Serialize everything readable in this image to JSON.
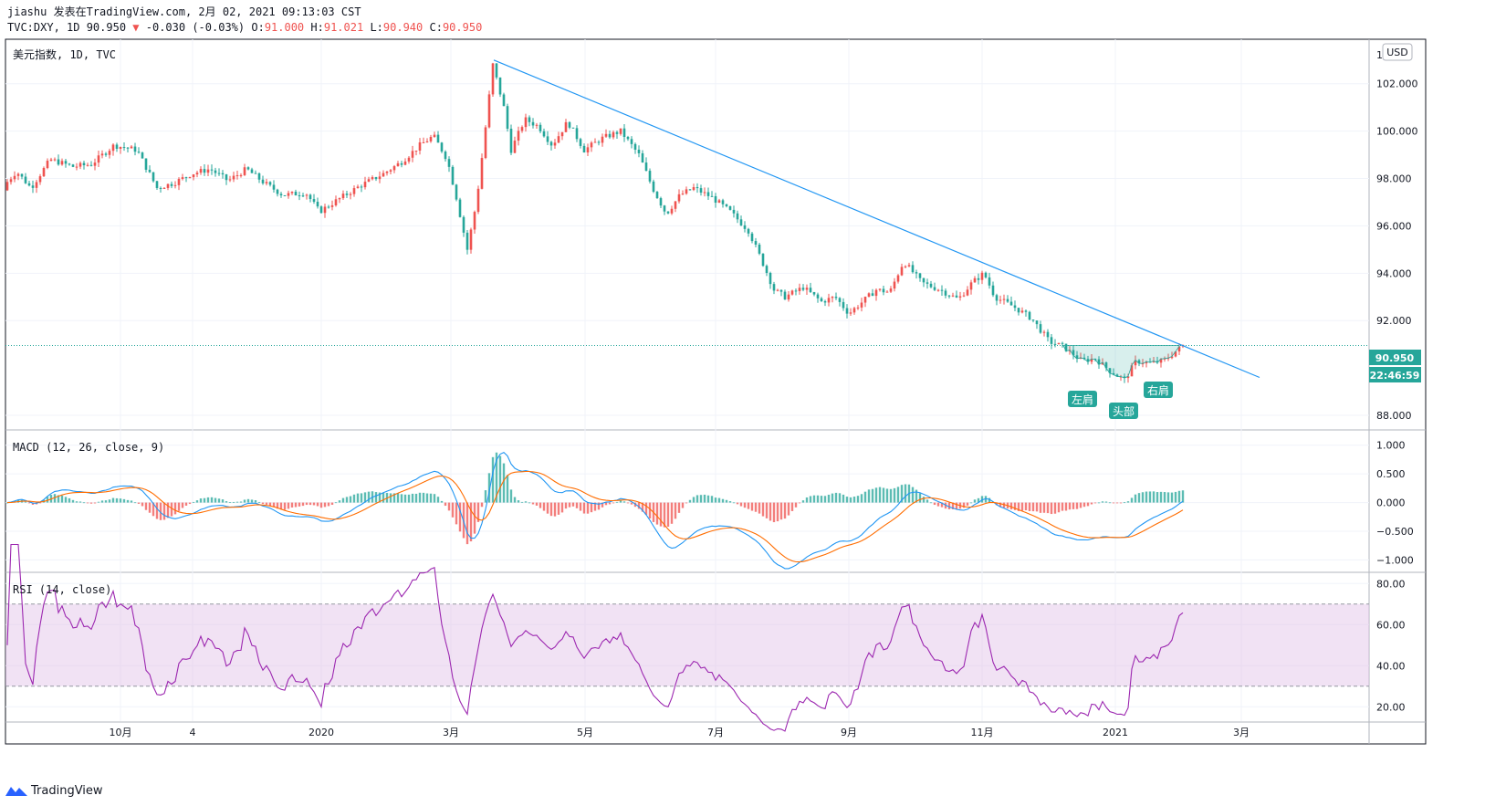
{
  "header": {
    "line1": "jiashu 发表在TradingView.com, 2月 02, 2021 09:13:03 CST",
    "symbol": "TVC:DXY, 1D 90.950",
    "change_arrow": "▼",
    "change": "-0.030 (-0.03%)",
    "o_label": "O:",
    "o_value": "91.000",
    "h_label": "H:",
    "h_value": "91.021",
    "l_label": "L:",
    "l_value": "90.940",
    "c_label": "C:",
    "c_value": "90.950"
  },
  "main_pane": {
    "title": "美元指数, 1D, TVC",
    "currency": "USD",
    "y_ticks": [
      "102.000",
      "100.000",
      "98.000",
      "96.000",
      "94.000",
      "92.000",
      "88.000"
    ],
    "top_tick": "1",
    "last_price": "90.950",
    "countdown": "22:46:59",
    "annotations": [
      "左肩",
      "头部",
      "右肩"
    ]
  },
  "macd_pane": {
    "title": "MACD (12, 26, close, 9)",
    "y_ticks": [
      "1.000",
      "0.500",
      "0.000",
      "−0.500",
      "−1.000"
    ]
  },
  "rsi_pane": {
    "title": "RSI (14, close)",
    "y_ticks": [
      "80.00",
      "60.00",
      "40.00",
      "20.00"
    ]
  },
  "time_axis": [
    "10月",
    "4",
    "2020",
    "3月",
    "5月",
    "7月",
    "9月",
    "11月",
    "2021",
    "3月"
  ],
  "footer": {
    "brand": "TradingView"
  },
  "colors": {
    "up": "#ef5350",
    "down": "#26a69a",
    "trendline": "#2196f3",
    "macd": "#2196f3",
    "signal": "#ff6d00",
    "rsi": "#9c27b0",
    "rsi_band": "#e1bee7",
    "badge": "#26a69a"
  },
  "chart_data": {
    "type": "candlestick",
    "symbol": "TVC:DXY",
    "interval": "1D",
    "x_labels": [
      "10月",
      "4",
      "2020",
      "3月",
      "5月",
      "7月",
      "9月",
      "11月",
      "2021",
      "3月"
    ],
    "price_path_keypoints": [
      [
        0,
        97.5
      ],
      [
        18,
        98.3
      ],
      [
        34,
        97.6
      ],
      [
        55,
        98.8
      ],
      [
        80,
        98.5
      ],
      [
        100,
        98.6
      ],
      [
        125,
        99.4
      ],
      [
        150,
        99.2
      ],
      [
        172,
        97.6
      ],
      [
        190,
        97.8
      ],
      [
        210,
        98.2
      ],
      [
        230,
        98.4
      ],
      [
        250,
        97.9
      ],
      [
        270,
        98.4
      ],
      [
        290,
        97.8
      ],
      [
        310,
        97.3
      ],
      [
        335,
        97.4
      ],
      [
        350,
        96.6
      ],
      [
        370,
        97.1
      ],
      [
        395,
        97.7
      ],
      [
        420,
        98.2
      ],
      [
        440,
        98.7
      ],
      [
        460,
        99.4
      ],
      [
        475,
        99.8
      ],
      [
        490,
        98.8
      ],
      [
        500,
        97.2
      ],
      [
        512,
        95.0
      ],
      [
        522,
        97.0
      ],
      [
        530,
        99.5
      ],
      [
        540,
        102.8
      ],
      [
        552,
        101.0
      ],
      [
        560,
        99.2
      ],
      [
        575,
        100.5
      ],
      [
        590,
        100.2
      ],
      [
        605,
        99.4
      ],
      [
        622,
        100.4
      ],
      [
        640,
        99.2
      ],
      [
        660,
        99.7
      ],
      [
        680,
        100.0
      ],
      [
        700,
        99.0
      ],
      [
        715,
        97.6
      ],
      [
        730,
        96.5
      ],
      [
        745,
        97.3
      ],
      [
        760,
        97.6
      ],
      [
        780,
        97.2
      ],
      [
        800,
        96.6
      ],
      [
        820,
        95.8
      ],
      [
        835,
        94.5
      ],
      [
        848,
        93.3
      ],
      [
        860,
        93.0
      ],
      [
        880,
        93.4
      ],
      [
        900,
        92.8
      ],
      [
        915,
        93.0
      ],
      [
        930,
        92.3
      ],
      [
        945,
        92.8
      ],
      [
        960,
        93.3
      ],
      [
        975,
        93.2
      ],
      [
        990,
        94.5
      ],
      [
        1010,
        93.6
      ],
      [
        1030,
        93.3
      ],
      [
        1050,
        92.9
      ],
      [
        1065,
        93.6
      ],
      [
        1078,
        94.0
      ],
      [
        1090,
        93.0
      ],
      [
        1110,
        92.6
      ],
      [
        1130,
        92.1
      ],
      [
        1150,
        91.1
      ],
      [
        1165,
        90.9
      ],
      [
        1185,
        90.3
      ],
      [
        1200,
        90.4
      ],
      [
        1215,
        89.9
      ],
      [
        1232,
        89.5
      ],
      [
        1245,
        90.3
      ],
      [
        1260,
        90.2
      ],
      [
        1275,
        90.3
      ],
      [
        1296,
        90.95
      ]
    ],
    "trendline": {
      "from": [
        "2020-03-20",
        103.0
      ],
      "to": [
        "2021-02-25",
        89.6
      ]
    },
    "annotations": [
      "左肩",
      "头部",
      "右肩"
    ],
    "last": 90.95,
    "open": 91.0,
    "high": 91.021,
    "low": 90.94,
    "close": 90.95,
    "change": -0.03,
    "change_pct": -0.03,
    "y_range": [
      87.5,
      103.8
    ],
    "indicators": {
      "macd": {
        "params": [
          12,
          26,
          "close",
          9
        ],
        "y_range": [
          -1.2,
          1.25
        ]
      },
      "rsi": {
        "params": [
          14,
          "close"
        ],
        "band": [
          30,
          70
        ],
        "y_range": [
          13,
          85
        ]
      }
    }
  }
}
